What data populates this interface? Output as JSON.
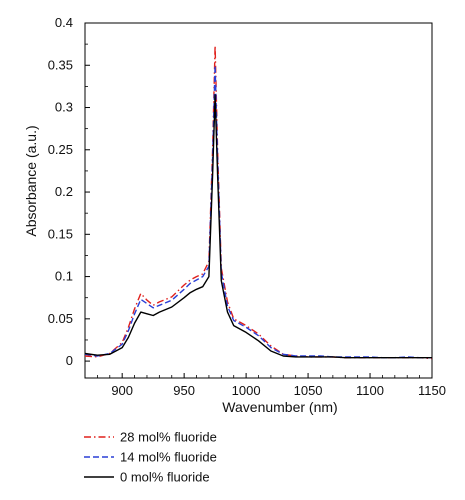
{
  "chart_data": {
    "type": "line",
    "xlabel": "Wavenumber (nm)",
    "ylabel": "Absorbance (a.u.)",
    "xlim": [
      870,
      1150
    ],
    "ylim": [
      -0.02,
      0.4
    ],
    "xticks": [
      900,
      950,
      1000,
      1050,
      1100,
      1150
    ],
    "yticks": [
      0,
      0.05,
      0.1,
      0.15,
      0.2,
      0.25,
      0.3,
      0.35,
      0.4
    ],
    "grid": false,
    "legend_position": "below-plot",
    "series": [
      {
        "name": "28 mol% fluoride",
        "color": "#e0201c",
        "dash": "dash-dot",
        "x": [
          870,
          880,
          890,
          900,
          905,
          910,
          915,
          920,
          925,
          930,
          940,
          950,
          955,
          960,
          965,
          970,
          973,
          975,
          977,
          980,
          985,
          990,
          1000,
          1010,
          1020,
          1030,
          1040,
          1050,
          1060,
          1070,
          1080,
          1090,
          1100,
          1110,
          1120,
          1130,
          1140,
          1150
        ],
        "y": [
          0.006,
          0.005,
          0.009,
          0.022,
          0.04,
          0.062,
          0.08,
          0.072,
          0.066,
          0.07,
          0.076,
          0.09,
          0.096,
          0.1,
          0.103,
          0.118,
          0.25,
          0.373,
          0.25,
          0.11,
          0.07,
          0.05,
          0.042,
          0.032,
          0.018,
          0.008,
          0.006,
          0.005,
          0.005,
          0.005,
          0.004,
          0.004,
          0.004,
          0.004,
          0.004,
          0.004,
          0.004,
          0.003
        ]
      },
      {
        "name": "14 mol% fluoride",
        "color": "#2a3fd6",
        "dash": "dash",
        "x": [
          870,
          880,
          890,
          900,
          905,
          910,
          915,
          920,
          925,
          930,
          940,
          950,
          955,
          960,
          965,
          970,
          973,
          975,
          977,
          980,
          985,
          990,
          1000,
          1010,
          1020,
          1030,
          1040,
          1050,
          1060,
          1070,
          1080,
          1090,
          1100,
          1110,
          1120,
          1130,
          1140,
          1150
        ],
        "y": [
          0.008,
          0.006,
          0.009,
          0.02,
          0.036,
          0.056,
          0.073,
          0.068,
          0.063,
          0.066,
          0.072,
          0.085,
          0.092,
          0.096,
          0.1,
          0.112,
          0.24,
          0.35,
          0.24,
          0.105,
          0.065,
          0.048,
          0.04,
          0.03,
          0.016,
          0.008,
          0.006,
          0.006,
          0.006,
          0.005,
          0.005,
          0.005,
          0.005,
          0.004,
          0.004,
          0.005,
          0.004,
          0.004
        ]
      },
      {
        "name": "0 mol% fluoride",
        "color": "#000000",
        "dash": "solid",
        "x": [
          870,
          880,
          890,
          900,
          905,
          910,
          915,
          920,
          925,
          930,
          940,
          950,
          955,
          960,
          965,
          970,
          973,
          975,
          977,
          980,
          985,
          990,
          1000,
          1010,
          1020,
          1030,
          1040,
          1050,
          1060,
          1070,
          1080,
          1090,
          1100,
          1110,
          1120,
          1130,
          1140,
          1150
        ],
        "y": [
          0.009,
          0.007,
          0.008,
          0.016,
          0.028,
          0.045,
          0.058,
          0.056,
          0.054,
          0.058,
          0.064,
          0.075,
          0.081,
          0.085,
          0.088,
          0.1,
          0.22,
          0.315,
          0.22,
          0.095,
          0.058,
          0.042,
          0.034,
          0.024,
          0.012,
          0.006,
          0.005,
          0.005,
          0.005,
          0.005,
          0.004,
          0.004,
          0.004,
          0.004,
          0.004,
          0.004,
          0.004,
          0.004
        ]
      }
    ]
  }
}
